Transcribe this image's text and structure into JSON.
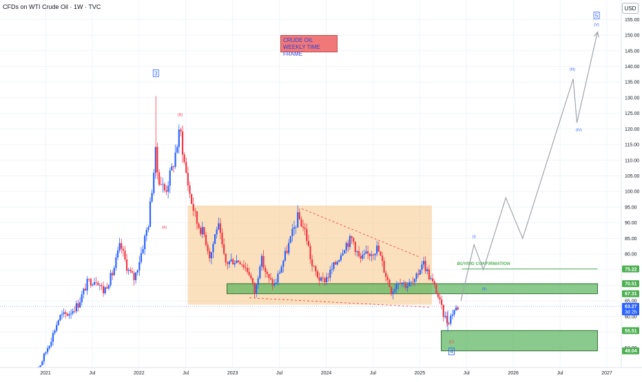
{
  "header": {
    "title": "CFDs on WTI Crude Oil · 1W · TVC",
    "currency_button": "USD"
  },
  "annotation": {
    "line1": "CRUDE OIL",
    "line2": "WEEKLY TIME FRAME"
  },
  "colors": {
    "bull": "#2962ff",
    "bear": "#f23645",
    "zone_green": "#4caf50",
    "zone_orange": "#f5c27a",
    "projection": "#a0a3ab",
    "wave_blue": "#2962ff",
    "wave_red": "#f23645"
  },
  "chart_data": {
    "type": "candlestick",
    "title": "CFDs on WTI Crude Oil · 1W · TVC",
    "x_ticks": [
      "2021",
      "Jul",
      "2022",
      "Jul",
      "2023",
      "Jul",
      "2024",
      "Jul",
      "2025",
      "Jul",
      "2026",
      "Jul",
      "2027"
    ],
    "x_tick_years": [
      2021.0,
      2021.5,
      2022.0,
      2022.5,
      2023.0,
      2023.5,
      2024.0,
      2024.5,
      2025.0,
      2025.5,
      2026.0,
      2026.5,
      2027.0
    ],
    "y_ticks": [
      50,
      55,
      60,
      65,
      70,
      75,
      80,
      85,
      90,
      95,
      100,
      105,
      110,
      115,
      120,
      125,
      130,
      135,
      140,
      145,
      150,
      155
    ],
    "ylim": [
      45.5,
      156
    ],
    "price_tags": [
      {
        "value": 75.22,
        "label": "75.22",
        "color": "#4caf50"
      },
      {
        "value": 70.51,
        "label": "70.51",
        "color": "#4caf50"
      },
      {
        "value": 67.31,
        "label": "67.31",
        "color": "#4caf50"
      },
      {
        "value": 63.27,
        "label": "63.27",
        "sub": "3d 2h",
        "color": "#2962ff"
      },
      {
        "value": 55.51,
        "label": "55.51",
        "color": "#4caf50"
      },
      {
        "value": 49.04,
        "label": "49.04",
        "color": "#4caf50"
      }
    ],
    "close_series": [
      {
        "t": 2020.85,
        "v": 41
      },
      {
        "t": 2020.95,
        "v": 45
      },
      {
        "t": 2021.05,
        "v": 52
      },
      {
        "t": 2021.15,
        "v": 60
      },
      {
        "t": 2021.25,
        "v": 61
      },
      {
        "t": 2021.35,
        "v": 64
      },
      {
        "t": 2021.45,
        "v": 71
      },
      {
        "t": 2021.55,
        "v": 72
      },
      {
        "t": 2021.62,
        "v": 68
      },
      {
        "t": 2021.72,
        "v": 74
      },
      {
        "t": 2021.8,
        "v": 83
      },
      {
        "t": 2021.88,
        "v": 75
      },
      {
        "t": 2021.95,
        "v": 72
      },
      {
        "t": 2022.02,
        "v": 80
      },
      {
        "t": 2022.1,
        "v": 90
      },
      {
        "t": 2022.18,
        "v": 113
      },
      {
        "t": 2022.2,
        "v": 105
      },
      {
        "t": 2022.28,
        "v": 100
      },
      {
        "t": 2022.36,
        "v": 108
      },
      {
        "t": 2022.44,
        "v": 120
      },
      {
        "t": 2022.48,
        "v": 110
      },
      {
        "t": 2022.55,
        "v": 98
      },
      {
        "t": 2022.62,
        "v": 90
      },
      {
        "t": 2022.7,
        "v": 86
      },
      {
        "t": 2022.76,
        "v": 79
      },
      {
        "t": 2022.84,
        "v": 90
      },
      {
        "t": 2022.92,
        "v": 77
      },
      {
        "t": 2023.0,
        "v": 78
      },
      {
        "t": 2023.08,
        "v": 78
      },
      {
        "t": 2023.18,
        "v": 74
      },
      {
        "t": 2023.24,
        "v": 67
      },
      {
        "t": 2023.3,
        "v": 79
      },
      {
        "t": 2023.38,
        "v": 72
      },
      {
        "t": 2023.45,
        "v": 70
      },
      {
        "t": 2023.52,
        "v": 76
      },
      {
        "t": 2023.6,
        "v": 83
      },
      {
        "t": 2023.7,
        "v": 92
      },
      {
        "t": 2023.78,
        "v": 87
      },
      {
        "t": 2023.85,
        "v": 76
      },
      {
        "t": 2023.95,
        "v": 71
      },
      {
        "t": 2024.02,
        "v": 73
      },
      {
        "t": 2024.1,
        "v": 77
      },
      {
        "t": 2024.2,
        "v": 83
      },
      {
        "t": 2024.28,
        "v": 85
      },
      {
        "t": 2024.36,
        "v": 78
      },
      {
        "t": 2024.45,
        "v": 80
      },
      {
        "t": 2024.55,
        "v": 82
      },
      {
        "t": 2024.62,
        "v": 75
      },
      {
        "t": 2024.7,
        "v": 68
      },
      {
        "t": 2024.78,
        "v": 72
      },
      {
        "t": 2024.86,
        "v": 70
      },
      {
        "t": 2024.95,
        "v": 71
      },
      {
        "t": 2025.03,
        "v": 78
      },
      {
        "t": 2025.1,
        "v": 73
      },
      {
        "t": 2025.18,
        "v": 68
      },
      {
        "t": 2025.25,
        "v": 61
      },
      {
        "t": 2025.3,
        "v": 58
      },
      {
        "t": 2025.36,
        "v": 62
      },
      {
        "t": 2025.42,
        "v": 63.27
      }
    ],
    "zones": [
      {
        "name": "consolidation-box",
        "t0": 2022.52,
        "t1": 2025.13,
        "y0": 63.8,
        "y1": 95.5
      },
      {
        "name": "support-resistance-zone",
        "t0": 2022.94,
        "t1": 2026.9,
        "y0": 67.31,
        "y1": 70.51
      },
      {
        "name": "demand-zone",
        "t0": 2025.23,
        "t1": 2026.9,
        "y0": 49.04,
        "y1": 55.51
      }
    ],
    "buying_confirmation": {
      "label": "BUYING CONFIRMATION",
      "value": 75.22,
      "t0": 2025.45,
      "t1": 2026.9
    },
    "wedge_upper": [
      {
        "t": 2023.74,
        "v": 94.5
      },
      {
        "t": 2025.0,
        "v": 79
      }
    ],
    "wedge_lower": [
      {
        "t": 2023.18,
        "v": 66
      },
      {
        "t": 2025.1,
        "v": 63
      }
    ],
    "projection_path": [
      {
        "t": 2025.44,
        "v": 65
      },
      {
        "t": 2025.58,
        "v": 83
      },
      {
        "t": 2025.68,
        "v": 75
      },
      {
        "t": 2025.92,
        "v": 98
      },
      {
        "t": 2026.1,
        "v": 85
      },
      {
        "t": 2026.64,
        "v": 136
      },
      {
        "t": 2026.68,
        "v": 122
      },
      {
        "t": 2026.9,
        "v": 151
      }
    ],
    "wave_labels": [
      {
        "text": "3",
        "t": 2022.18,
        "v": 137.5,
        "color": "#2962ff",
        "boxed": true
      },
      {
        "text": "(B)",
        "t": 2022.44,
        "v": 124.5,
        "color": "#f23645",
        "boxed": false
      },
      {
        "text": "(A)",
        "t": 2022.27,
        "v": 88.5,
        "color": "#f23645",
        "boxed": false
      },
      {
        "text": "(C)",
        "t": 2025.34,
        "v": 51.8,
        "color": "#f23645",
        "boxed": false
      },
      {
        "text": "4",
        "t": 2025.34,
        "v": 48.5,
        "color": "#2962ff",
        "boxed": true
      },
      {
        "text": "(I)",
        "t": 2025.58,
        "v": 85.5,
        "color": "#2962ff",
        "boxed": false
      },
      {
        "text": "(II)",
        "t": 2025.69,
        "v": 68.8,
        "color": "#2962ff",
        "boxed": false
      },
      {
        "text": "(III)",
        "t": 2026.63,
        "v": 139,
        "color": "#2962ff",
        "boxed": false
      },
      {
        "text": "(IV)",
        "t": 2026.7,
        "v": 119.6,
        "color": "#2962ff",
        "boxed": false
      },
      {
        "text": "(V)",
        "t": 2026.89,
        "v": 153.3,
        "color": "#2962ff",
        "boxed": false
      },
      {
        "text": "5",
        "t": 2026.89,
        "v": 156,
        "color": "#2962ff",
        "boxed": true
      }
    ]
  }
}
